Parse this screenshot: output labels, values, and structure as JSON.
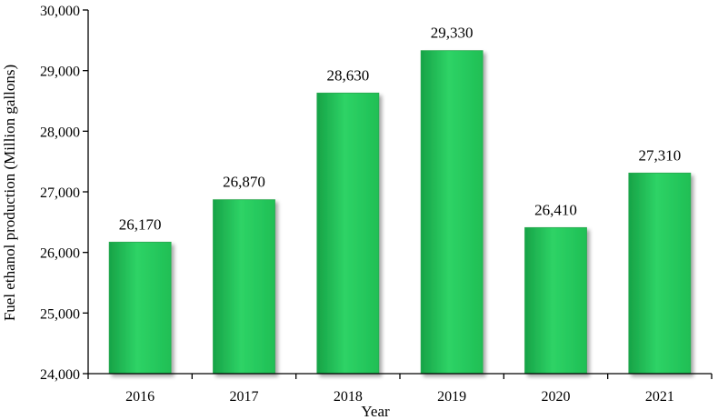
{
  "chart_data": {
    "type": "bar",
    "categories": [
      "2016",
      "2017",
      "2018",
      "2019",
      "2020",
      "2021"
    ],
    "values": [
      26170,
      26870,
      28630,
      29330,
      26410,
      27310
    ],
    "data_labels": [
      "26,170",
      "26,870",
      "28,630",
      "29,330",
      "26,410",
      "27,310"
    ],
    "title": "",
    "xlabel": "Year",
    "ylabel": "Fuel ethanol production (Million gallons)",
    "ylim": [
      24000,
      30000
    ],
    "yticks": [
      24000,
      25000,
      26000,
      27000,
      28000,
      29000,
      30000
    ],
    "ytick_labels": [
      "24,000",
      "25,000",
      "26,000",
      "27,000",
      "28,000",
      "29,000",
      "30,000"
    ],
    "grid": false,
    "legend": "none",
    "bar_color": "#1fbf55",
    "bar_color_light": "#2ed366",
    "bar_color_dark": "#17a347"
  }
}
